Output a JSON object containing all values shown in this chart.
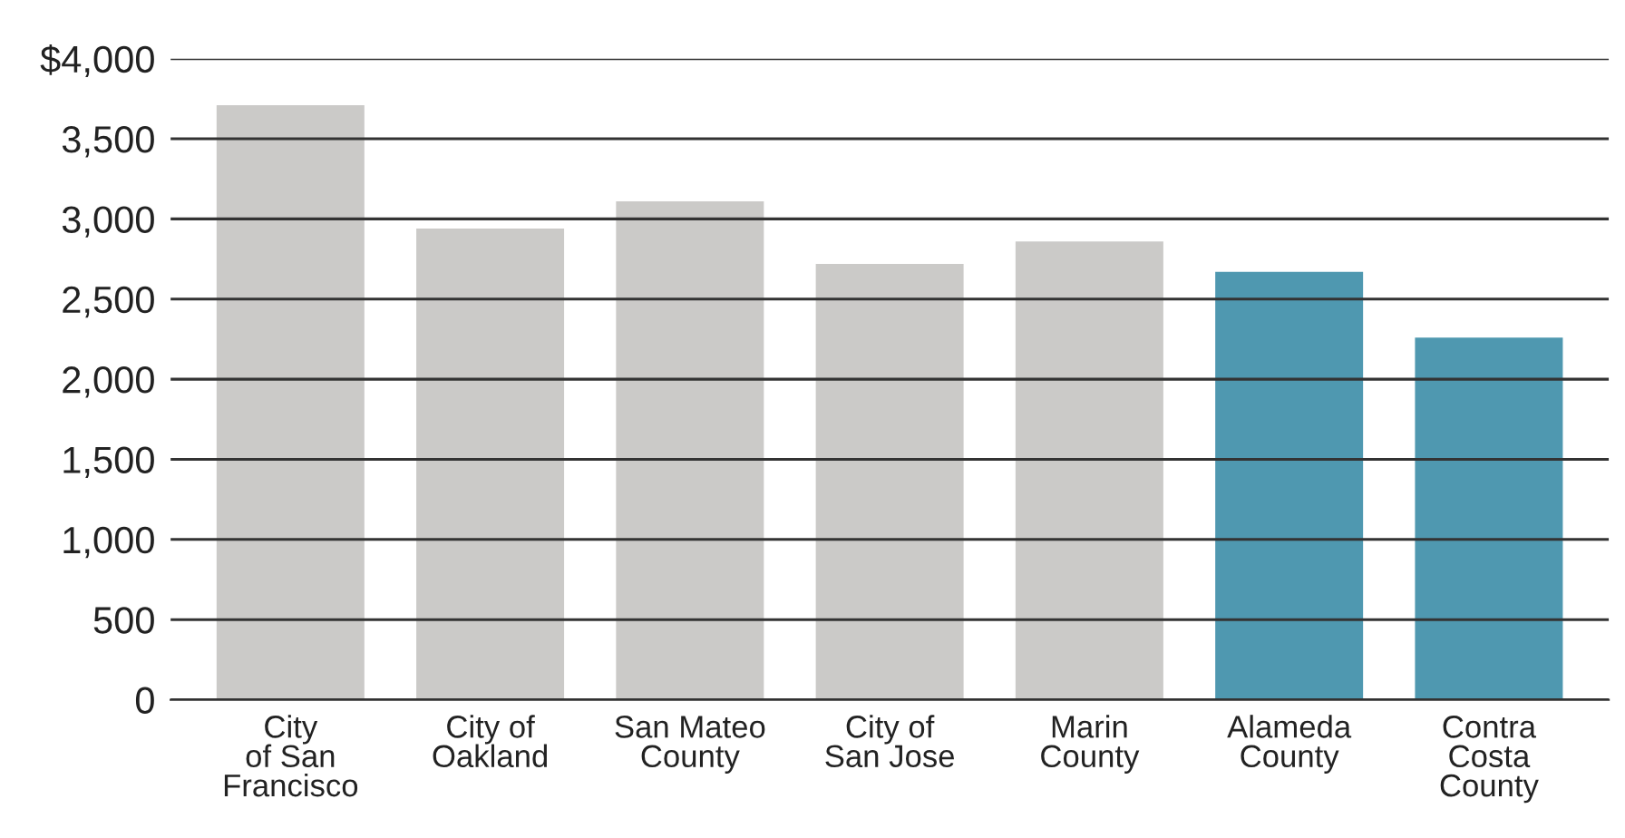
{
  "chart_data": {
    "type": "bar",
    "categories": [
      "City\nof San\nFrancisco",
      "City of\nOakland",
      "San Mateo\nCounty",
      "City of\nSan Jose",
      "Marin\nCounty",
      "Alameda\nCounty",
      "Contra\nCosta\nCounty"
    ],
    "values": [
      3710,
      2940,
      3110,
      2720,
      2860,
      2670,
      2260
    ],
    "colors": [
      "#cbcac8",
      "#cbcac8",
      "#cbcac8",
      "#cbcac8",
      "#cbcac8",
      "#4f98b0",
      "#4f98b0"
    ],
    "ylim": [
      0,
      4000
    ],
    "yticks": [
      0,
      500,
      {
        "value": 1000,
        "label": "1,000"
      },
      {
        "value": 1500,
        "label": "1,500"
      },
      {
        "value": 2000,
        "label": "2,000"
      },
      {
        "value": 2500,
        "label": "2,500"
      },
      {
        "value": 3000,
        "label": "3,000"
      },
      {
        "value": 3500,
        "label": "3,500"
      },
      {
        "value": 4000,
        "label": "$4,000"
      }
    ],
    "grid": "y"
  }
}
